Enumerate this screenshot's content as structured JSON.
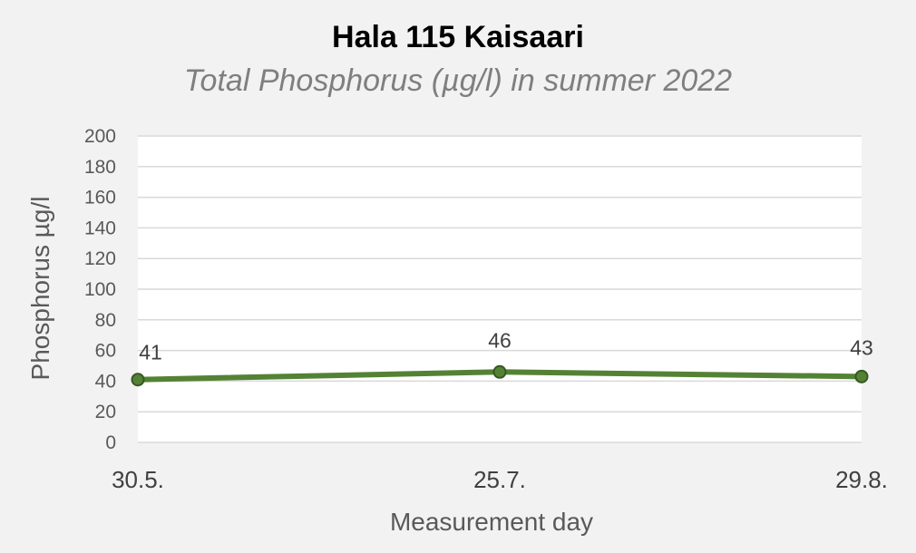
{
  "chart_data": {
    "type": "line",
    "title": "Hala 115 Kaisaari",
    "subtitle": "Total Phosphorus (µg/l) in summer 2022",
    "xlabel": "Measurement day",
    "ylabel": "Phosphorus µg/l",
    "categories": [
      "30.5.",
      "25.7.",
      "29.8."
    ],
    "series": [
      {
        "values": [
          41,
          46,
          43
        ],
        "color": "#548235"
      }
    ],
    "ylim": [
      0,
      200
    ],
    "yticks": [
      0,
      20,
      40,
      60,
      80,
      100,
      120,
      140,
      160,
      180,
      200
    ],
    "data_labels": [
      "41",
      "46",
      "43"
    ],
    "grid": true,
    "legend": "none"
  }
}
